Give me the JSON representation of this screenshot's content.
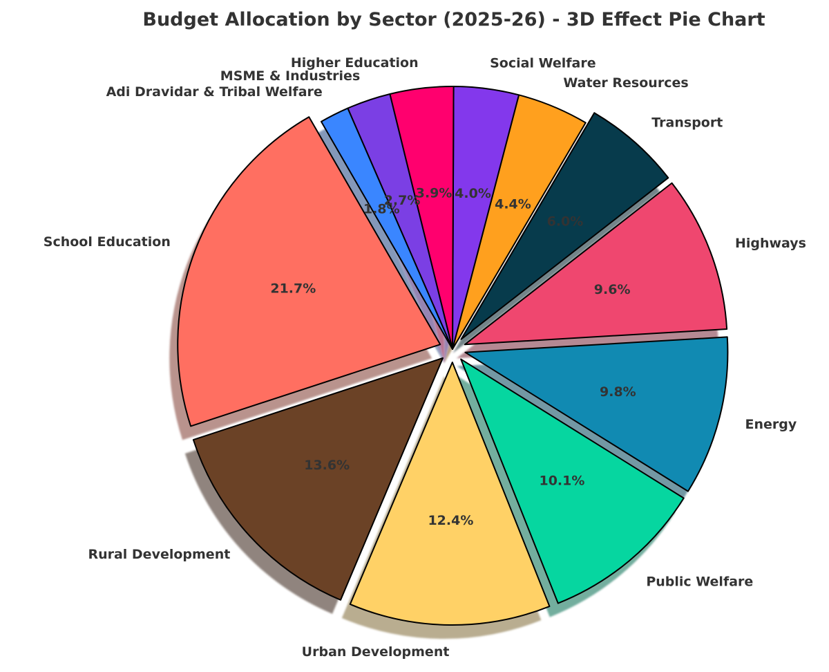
{
  "chart_data": {
    "type": "pie",
    "title": "Budget Allocation by Sector (2025-26) - 3D Effect Pie Chart",
    "start_angle_deg": 120,
    "direction": "counterclockwise",
    "shadow": true,
    "slices": [
      {
        "label": "School Education",
        "value": 21.7,
        "pct_label": "21.7%",
        "color": "#FF6F61",
        "exploded": true
      },
      {
        "label": "Rural Development",
        "value": 13.6,
        "pct_label": "13.6%",
        "color": "#6B4226",
        "exploded": true
      },
      {
        "label": "Urban Development",
        "value": 12.4,
        "pct_label": "12.4%",
        "color": "#FFD166",
        "exploded": true
      },
      {
        "label": "Public Welfare",
        "value": 10.1,
        "pct_label": "10.1%",
        "color": "#06D6A0",
        "exploded": true
      },
      {
        "label": "Energy",
        "value": 9.8,
        "pct_label": "9.8%",
        "color": "#118AB2",
        "exploded": true
      },
      {
        "label": "Highways",
        "value": 9.6,
        "pct_label": "9.6%",
        "color": "#EF476F",
        "exploded": true
      },
      {
        "label": "Transport",
        "value": 6.0,
        "pct_label": "6.0%",
        "color": "#073B4C",
        "exploded": true
      },
      {
        "label": "Water Resources",
        "value": 4.4,
        "pct_label": "4.4%",
        "color": "#FFA01E",
        "exploded": false
      },
      {
        "label": "Social Welfare",
        "value": 4.0,
        "pct_label": "4.0%",
        "color": "#8338EC",
        "exploded": false
      },
      {
        "label": "Higher Education",
        "value": 3.9,
        "pct_label": "3.9%",
        "color": "#FF006E",
        "exploded": false
      },
      {
        "label": "MSME & Industries",
        "value": 2.7,
        "pct_label": "2.7%",
        "color": "#7B3FE4",
        "exploded": false
      },
      {
        "label": "Adi Dravidar & Tribal Welfare",
        "value": 1.8,
        "pct_label": "1.8%",
        "color": "#3A86FF",
        "exploded": false
      }
    ]
  }
}
